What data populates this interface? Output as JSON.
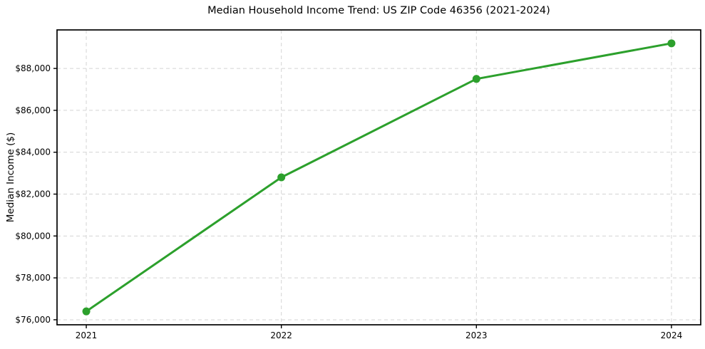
{
  "window": {
    "background": "#ffffff"
  },
  "chart_data": {
    "type": "line",
    "title": "Median Household Income Trend: US ZIP Code 46356 (2021-2024)",
    "xlabel": "",
    "ylabel": "Median Income ($)",
    "x": [
      2021,
      2022,
      2023,
      2024
    ],
    "series": [
      {
        "name": "Median Household Income",
        "values": [
          76400,
          82800,
          87500,
          89200
        ],
        "color": "#2ca02c",
        "marker": "circle",
        "line_width": 3,
        "marker_radius": 5.5
      }
    ],
    "xticks": [
      {
        "value": 2021,
        "label": "2021"
      },
      {
        "value": 2022,
        "label": "2022"
      },
      {
        "value": 2023,
        "label": "2023"
      },
      {
        "value": 2024,
        "label": "2024"
      }
    ],
    "yticks": [
      {
        "value": 76000,
        "label": "$76,000"
      },
      {
        "value": 78000,
        "label": "$78,000"
      },
      {
        "value": 80000,
        "label": "$80,000"
      },
      {
        "value": 82000,
        "label": "$82,000"
      },
      {
        "value": 84000,
        "label": "$84,000"
      },
      {
        "value": 86000,
        "label": "$86,000"
      },
      {
        "value": 88000,
        "label": "$88,000"
      }
    ],
    "xlim": [
      2020.85,
      2024.15
    ],
    "ylim": [
      75760,
      89840
    ],
    "grid": true,
    "grid_color": "#d4d4d4",
    "grid_dash": "5,4",
    "axis_color": "#000000",
    "legend_position": "none"
  }
}
